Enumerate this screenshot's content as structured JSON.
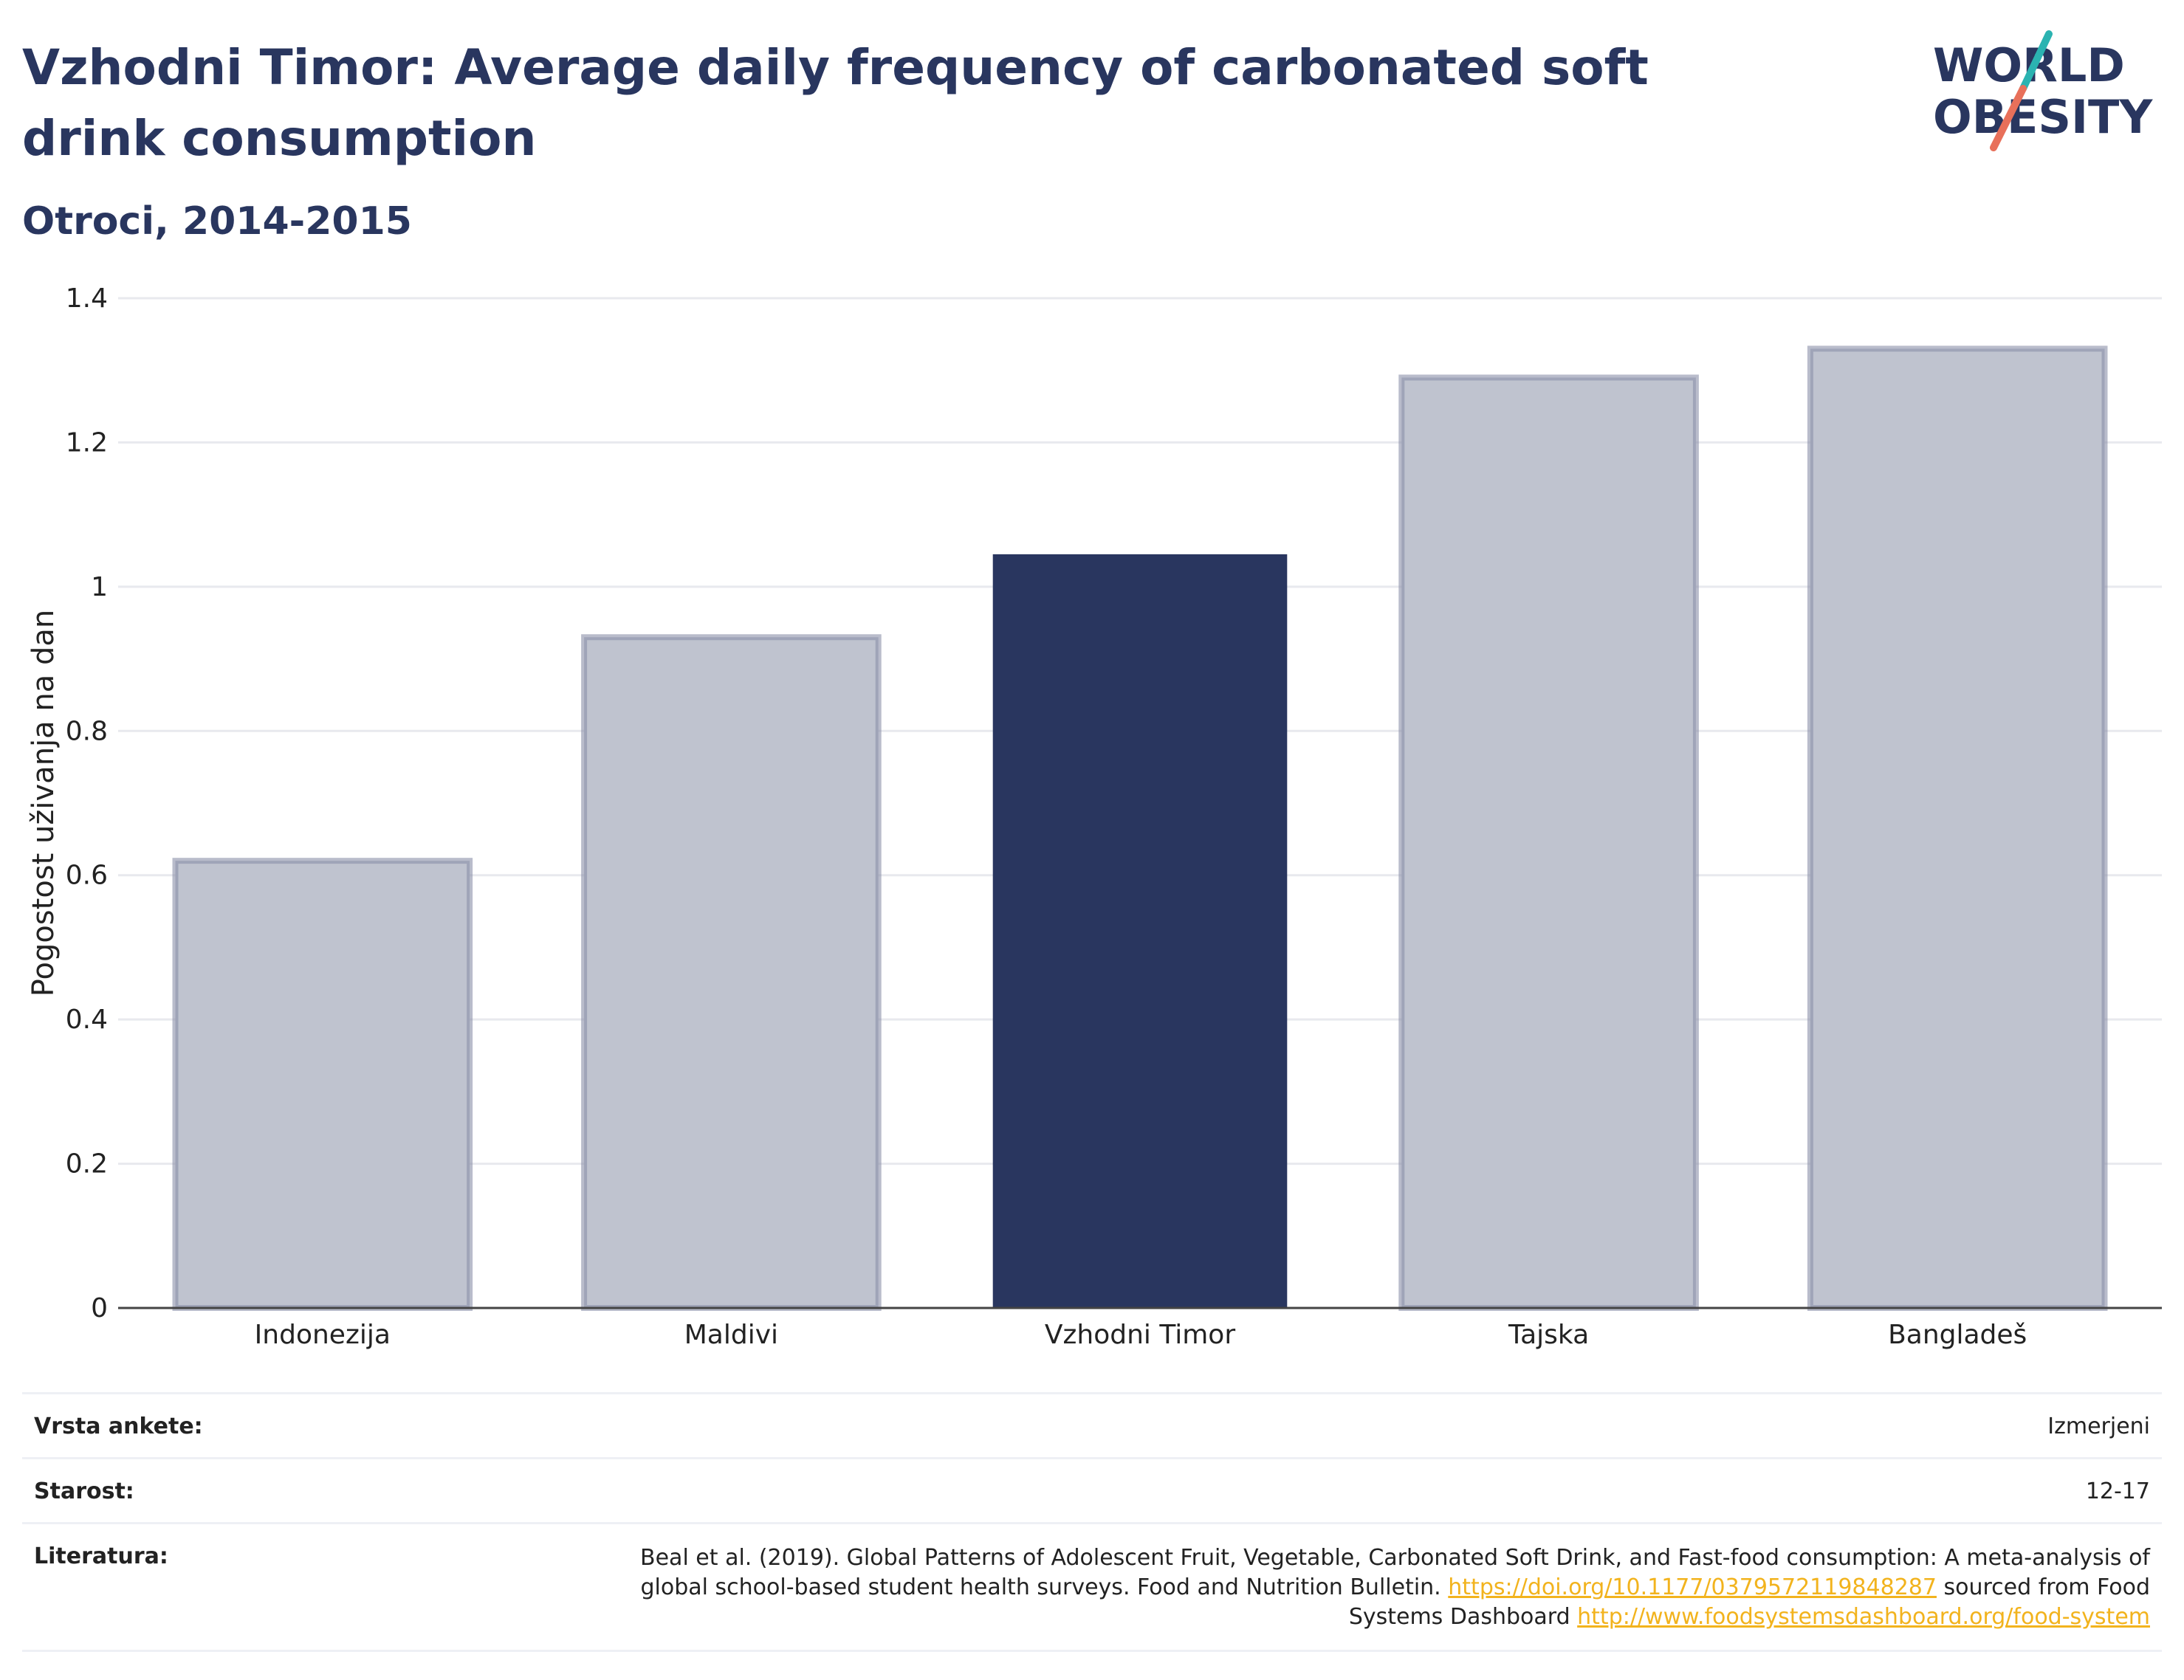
{
  "header": {
    "title": "Vzhodni Timor: Average daily frequency of carbonated soft drink consumption",
    "subtitle": "Otroci, 2014-2015"
  },
  "logo": {
    "line1": "WORLD",
    "line2": "OBESITY"
  },
  "chart_data": {
    "type": "bar",
    "title": "Vzhodni Timor: Average daily frequency of carbonated soft drink consumption",
    "subtitle": "Otroci, 2014-2015",
    "xlabel": "",
    "ylabel": "Pogostost uživanja na dan",
    "categories": [
      "Indonezija",
      "Maldivi",
      "Vzhodni Timor",
      "Tajska",
      "Bangladeš"
    ],
    "values": [
      0.62,
      0.93,
      1.045,
      1.29,
      1.33
    ],
    "highlight": "Vzhodni Timor",
    "ylim": [
      0,
      1.4
    ],
    "yticks": [
      0,
      0.2,
      0.4,
      0.6,
      0.8,
      1,
      1.2,
      1.4
    ],
    "ytick_labels": [
      "0",
      "0.2",
      "0.4",
      "0.6",
      "0.8",
      "1",
      "1.2",
      "1.4"
    ],
    "grid": true,
    "colors": {
      "highlight": "#29365f",
      "other_fill": "#bfc3cf",
      "other_stroke": "#8a90a8"
    }
  },
  "info": {
    "survey_label": "Vrsta ankete:",
    "survey_value": "Izmerjeni",
    "age_label": "Starost:",
    "age_value": "12-17",
    "ref_label": "Literatura:",
    "ref_text1": "Beal et al. (2019). Global Patterns of Adolescent Fruit, Vegetable, Carbonated Soft Drink, and Fast-food consumption: A meta-analysis of global school-based student health surveys. Food and Nutrition Bulletin.",
    "ref_link1": "https://doi.org/10.1177/0379572119848287",
    "ref_text2": "sourced from Food Systems Dashboard",
    "ref_link2": "http://www.foodsystemsdashboard.org/food-system"
  }
}
